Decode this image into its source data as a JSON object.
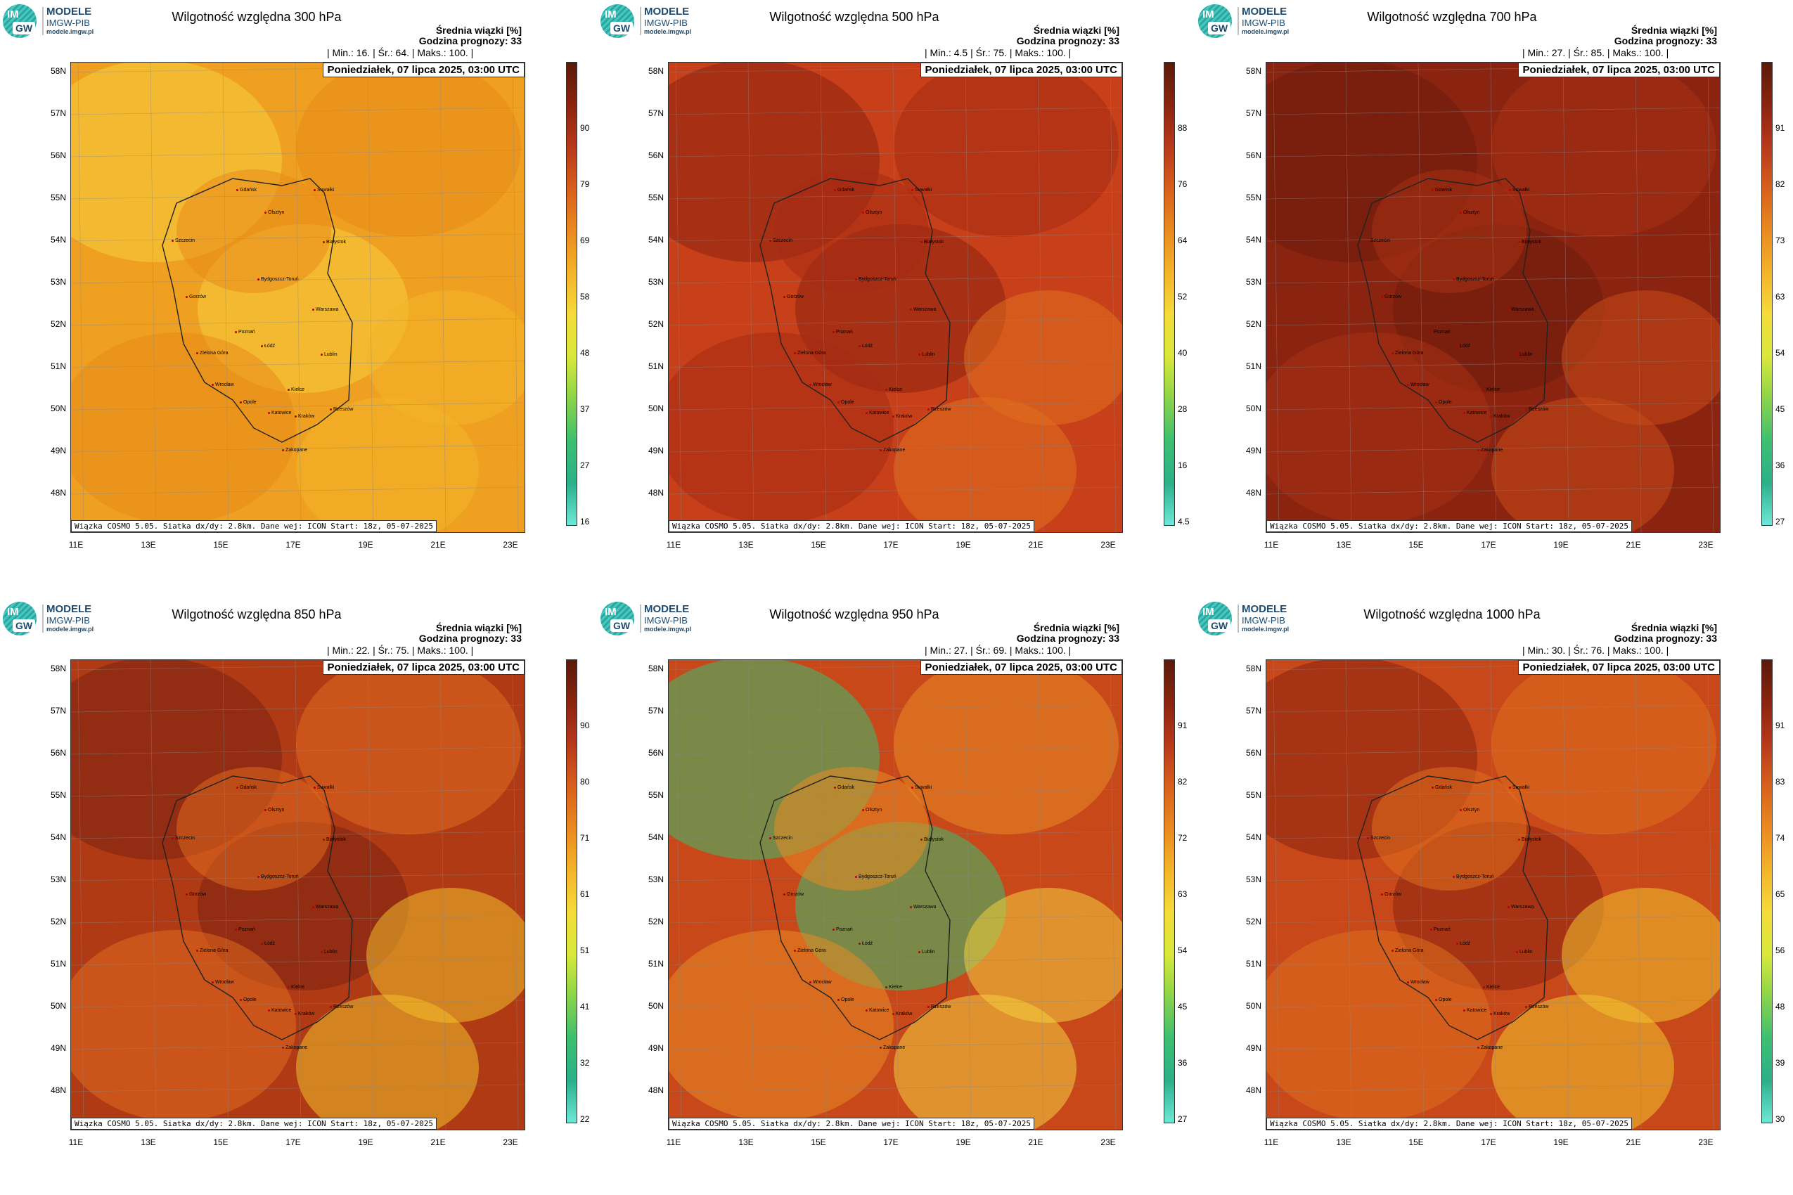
{
  "logo": {
    "abbr_top": "IM",
    "abbr_bottom": "GW",
    "line1": "MODELE",
    "line2": "IMGW-PIB",
    "line3": "modele.imgw.pl"
  },
  "common": {
    "info_line1": "Średnia wiązki [%]",
    "info_line2": "Godzina prognozy: 33",
    "date_label": "Poniedziałek, 07 lipca 2025, 03:00 UTC",
    "model_label": "Wiązka COSMO 5.05. Siatka dx/dy: 2.8km. Dane wej: ICON Start: 18z, 05-07-2025",
    "lat_labels": [
      "58N",
      "57N",
      "56N",
      "55N",
      "54N",
      "53N",
      "52N",
      "51N",
      "50N",
      "49N",
      "48N"
    ],
    "lon_labels": [
      "11E",
      "13E",
      "15E",
      "17E",
      "19E",
      "21E",
      "23E"
    ]
  },
  "panels": [
    {
      "title": "Wilgotność względna 300 hPa",
      "stats": "| Min.:    16. | Śr.:    64. | Maks.:    100. |",
      "colorbar_ticks": [
        "90",
        "79",
        "69",
        "58",
        "48",
        "37",
        "27",
        "16"
      ],
      "dominant": "orange",
      "palette": [
        "#f0a020",
        "#e88a1a",
        "#f2b42a",
        "#f6d040"
      ]
    },
    {
      "title": "Wilgotność względna 500 hPa",
      "stats": "| Min.:    4.5 | Śr.:    75. | Maks.:    100. |",
      "colorbar_ticks": [
        "88",
        "76",
        "64",
        "52",
        "40",
        "28",
        "16",
        "4.5"
      ],
      "dominant": "red-brown",
      "palette": [
        "#c8401a",
        "#a62a12",
        "#e0701e",
        "#8a2010"
      ]
    },
    {
      "title": "Wilgotność względna 700 hPa",
      "stats": "| Min.:    27. | Śr.:    85. | Maks.:    100. |",
      "colorbar_ticks": [
        "91",
        "82",
        "73",
        "63",
        "54",
        "45",
        "36",
        "27"
      ],
      "dominant": "dark-brown",
      "palette": [
        "#8a2410",
        "#a83014",
        "#c84a18",
        "#6e1c0c"
      ]
    },
    {
      "title": "Wilgotność względna 850 hPa",
      "stats": "| Min.:    22. | Śr.:    75. | Maks.:    100. |",
      "colorbar_ticks": [
        "90",
        "80",
        "71",
        "61",
        "51",
        "41",
        "32",
        "22"
      ],
      "dominant": "mixed",
      "palette": [
        "#b03a14",
        "#e06a1e",
        "#f2c02c",
        "#7a2010"
      ]
    },
    {
      "title": "Wilgotność względna 950 hPa",
      "stats": "| Min.:    27. | Śr.:    69. | Maks.:    100. |",
      "colorbar_ticks": [
        "91",
        "82",
        "72",
        "63",
        "54",
        "45",
        "36",
        "27"
      ],
      "dominant": "mixed-green",
      "palette": [
        "#c8481a",
        "#e88a22",
        "#f4d040",
        "#3cbf70"
      ]
    },
    {
      "title": "Wilgotność względna 1000 hPa",
      "stats": "| Min.:    30. | Śr.:    76. | Maks.:    100. |",
      "colorbar_ticks": [
        "91",
        "83",
        "74",
        "65",
        "56",
        "48",
        "39",
        "30"
      ],
      "dominant": "mixed",
      "palette": [
        "#c8481a",
        "#e0701e",
        "#f4c430",
        "#8a2410"
      ]
    }
  ],
  "cities": [
    "Gdańsk",
    "Olsztyn",
    "Suwałki",
    "Białystok",
    "Szczecin",
    "Bydgoszcz-Toruń",
    "Gorzów",
    "Poznań",
    "Warszawa",
    "Zielona Góra",
    "Łódź",
    "Lublin",
    "Wrocław",
    "Kielce",
    "Opole",
    "Katowice",
    "Kraków",
    "Rzeszów",
    "Zakopane"
  ]
}
